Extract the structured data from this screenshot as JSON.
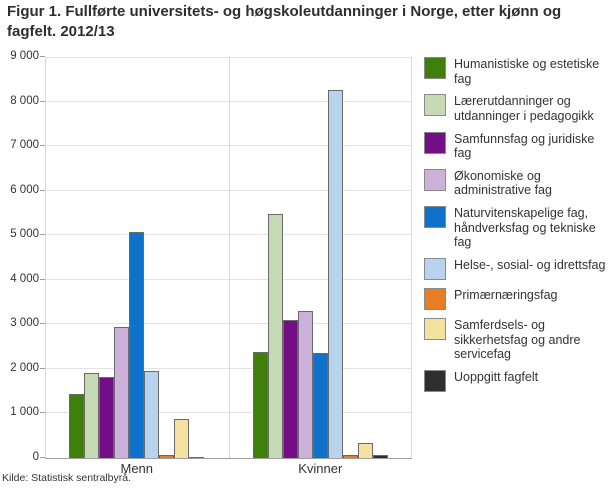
{
  "title": "Figur 1. Fullførte universitets- og høgskoleutdanninger i Norge, etter kjønn og fagfelt. 2012/13",
  "source": "Kilde: Statistisk sentralbyrå.",
  "chart_data": {
    "type": "bar",
    "categories": [
      "Menn",
      "Kvinner"
    ],
    "series": [
      {
        "name": "Humanistiske og estetiske fag",
        "color": "#3e800a",
        "values": [
          1450,
          2400
        ]
      },
      {
        "name": "Lærerutdanninger og utdanninger i pedagogikk",
        "color": "#c6d9b5",
        "values": [
          1930,
          5510
        ]
      },
      {
        "name": "Samfunnsfag og juridiske fag",
        "color": "#740e87",
        "values": [
          1840,
          3110
        ]
      },
      {
        "name": "Økonomiske og administrative fag",
        "color": "#ccb2da",
        "values": [
          2960,
          3320
        ]
      },
      {
        "name": "Naturvitenskapelige fag, håndverksfag og tekniske fag",
        "color": "#0f72ca",
        "values": [
          5090,
          2390
        ]
      },
      {
        "name": "Helse-, sosial- og idrettsfag",
        "color": "#b7d3ee",
        "values": [
          1970,
          8290
        ]
      },
      {
        "name": "Primærnæringsfag",
        "color": "#e87d25",
        "values": [
          100,
          100
        ]
      },
      {
        "name": "Samferdsels- og sikkerhetsfag og andre servicefag",
        "color": "#f5e1a0",
        "values": [
          890,
          350
        ]
      },
      {
        "name": "Uoppgitt fagfelt",
        "color": "#2f2f2f",
        "values": [
          50,
          80
        ]
      }
    ],
    "ylim": [
      0,
      9000
    ],
    "ytick_step": 1000,
    "ytick_labels": [
      "0",
      "1 000",
      "2 000",
      "3 000",
      "4 000",
      "5 000",
      "6 000",
      "7 000",
      "8 000",
      "9 000"
    ],
    "grid": true,
    "legend_position": "right",
    "bar_border_color": "#6a6a6a"
  }
}
